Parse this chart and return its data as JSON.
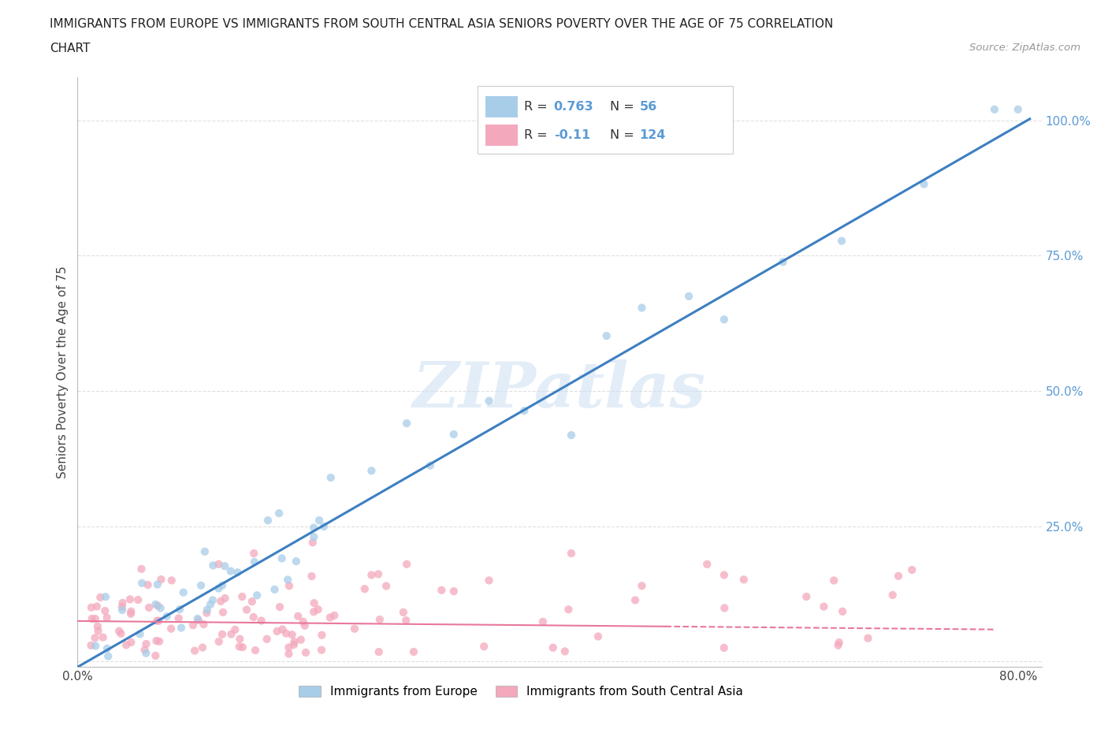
{
  "title_line1": "IMMIGRANTS FROM EUROPE VS IMMIGRANTS FROM SOUTH CENTRAL ASIA SENIORS POVERTY OVER THE AGE OF 75 CORRELATION",
  "title_line2": "CHART",
  "source": "Source: ZipAtlas.com",
  "ylabel": "Seniors Poverty Over the Age of 75",
  "xlim": [
    0.0,
    0.82
  ],
  "ylim": [
    -0.01,
    1.08
  ],
  "R_europe": 0.763,
  "N_europe": 56,
  "R_asia": -0.11,
  "N_asia": 124,
  "legend_europe": "Immigrants from Europe",
  "legend_asia": "Immigrants from South Central Asia",
  "watermark": "ZIPatlas",
  "europe_dot_color": "#a8cde8",
  "asia_dot_color": "#f4a8bc",
  "trend_europe_color": "#3d7fc1",
  "trend_asia_color": "#e8789a",
  "background_color": "#ffffff",
  "grid_color": "#dddddd",
  "ytick_color": "#5b9bd5",
  "legend_R_N_color": "#5b9bd5"
}
